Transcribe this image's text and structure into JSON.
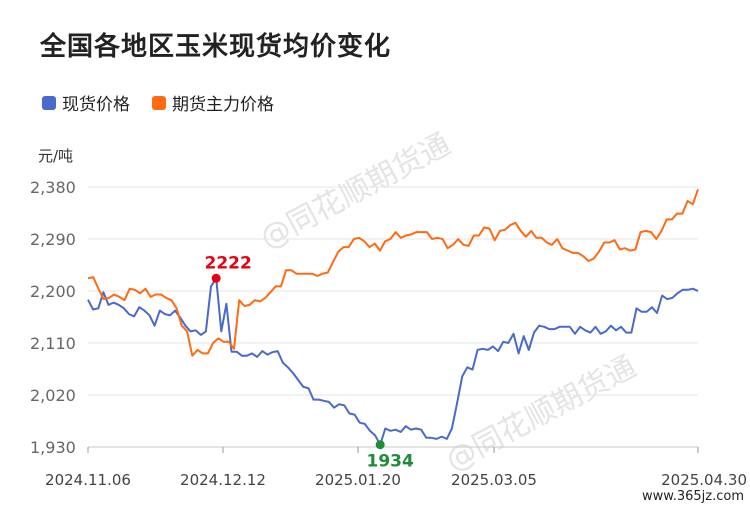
{
  "title": "全国各地区玉米现货均价变化",
  "unit": "元/吨",
  "watermark": "@同花顺期货通",
  "site_mark": "www.365jz.com",
  "colors": {
    "spot": "#4a6ac9",
    "futures": "#ff6a13",
    "max_marker": "#e60012",
    "min_marker": "#1e8c3a"
  },
  "chart_data": {
    "type": "line",
    "title": "全国各地区玉米现货均价变化",
    "ylabel": "元/吨",
    "ylim": [
      1930,
      2380
    ],
    "yticks": [
      1930,
      2020,
      2110,
      2200,
      2290,
      2380
    ],
    "ytick_labels": [
      "1,930",
      "2,020",
      "2,110",
      "2,200",
      "2,290",
      "2,380"
    ],
    "xtick_labels": [
      "2024.11.06",
      "2024.12.12",
      "2025.01.20",
      "2025.03.05",
      "2025.04.30"
    ],
    "legend_position": "top-left",
    "grid": true,
    "series": [
      {
        "name": "现货价格",
        "color": "#4a6ac9",
        "values": [
          2185,
          2168,
          2170,
          2198,
          2176,
          2180,
          2176,
          2170,
          2160,
          2156,
          2172,
          2166,
          2158,
          2140,
          2166,
          2160,
          2158,
          2166,
          2154,
          2140,
          2130,
          2132,
          2124,
          2130,
          2208,
          2222,
          2130,
          2178,
          2095,
          2095,
          2088,
          2088,
          2092,
          2086,
          2096,
          2090,
          2094,
          2096,
          2076,
          2068,
          2058,
          2046,
          2034,
          2032,
          2012,
          2012,
          2010,
          2008,
          1998,
          2004,
          2002,
          1988,
          1986,
          1972,
          1970,
          1958,
          1950,
          1934,
          1962,
          1958,
          1960,
          1956,
          1966,
          1960,
          1962,
          1960,
          1946,
          1946,
          1944,
          1948,
          1944,
          1962,
          2006,
          2052,
          2068,
          2064,
          2098,
          2100,
          2098,
          2104,
          2096,
          2112,
          2110,
          2126,
          2092,
          2122,
          2098,
          2128,
          2140,
          2138,
          2134,
          2134,
          2138,
          2138,
          2138,
          2126,
          2138,
          2132,
          2128,
          2138,
          2126,
          2130,
          2140,
          2132,
          2138,
          2128,
          2128,
          2170,
          2164,
          2164,
          2172,
          2162,
          2192,
          2186,
          2188,
          2196,
          2202,
          2202,
          2204,
          2200
        ]
      },
      {
        "name": "期货主力价格",
        "color": "#ff6a13",
        "values": [
          2222,
          2224,
          2204,
          2186,
          2188,
          2194,
          2190,
          2184,
          2204,
          2202,
          2196,
          2204,
          2190,
          2194,
          2194,
          2188,
          2184,
          2170,
          2140,
          2130,
          2088,
          2098,
          2092,
          2092,
          2110,
          2118,
          2112,
          2112,
          2100,
          2184,
          2174,
          2176,
          2184,
          2182,
          2188,
          2198,
          2208,
          2208,
          2236,
          2236,
          2230,
          2230,
          2230,
          2230,
          2226,
          2230,
          2232,
          2250,
          2268,
          2276,
          2276,
          2290,
          2292,
          2286,
          2276,
          2282,
          2270,
          2286,
          2290,
          2302,
          2292,
          2296,
          2298,
          2302,
          2302,
          2302,
          2290,
          2292,
          2290,
          2274,
          2280,
          2290,
          2280,
          2278,
          2296,
          2296,
          2310,
          2308,
          2288,
          2304,
          2306,
          2314,
          2318,
          2304,
          2294,
          2304,
          2292,
          2292,
          2284,
          2280,
          2290,
          2274,
          2270,
          2266,
          2266,
          2260,
          2252,
          2256,
          2268,
          2284,
          2284,
          2288,
          2272,
          2274,
          2270,
          2272,
          2302,
          2304,
          2302,
          2290,
          2304,
          2324,
          2324,
          2334,
          2334,
          2356,
          2350,
          2376
        ]
      }
    ],
    "annotations": [
      {
        "label": "2222",
        "series": "现货价格",
        "value": 2222,
        "type": "max"
      },
      {
        "label": "1934",
        "series": "现货价格",
        "value": 1934,
        "type": "min"
      }
    ]
  }
}
